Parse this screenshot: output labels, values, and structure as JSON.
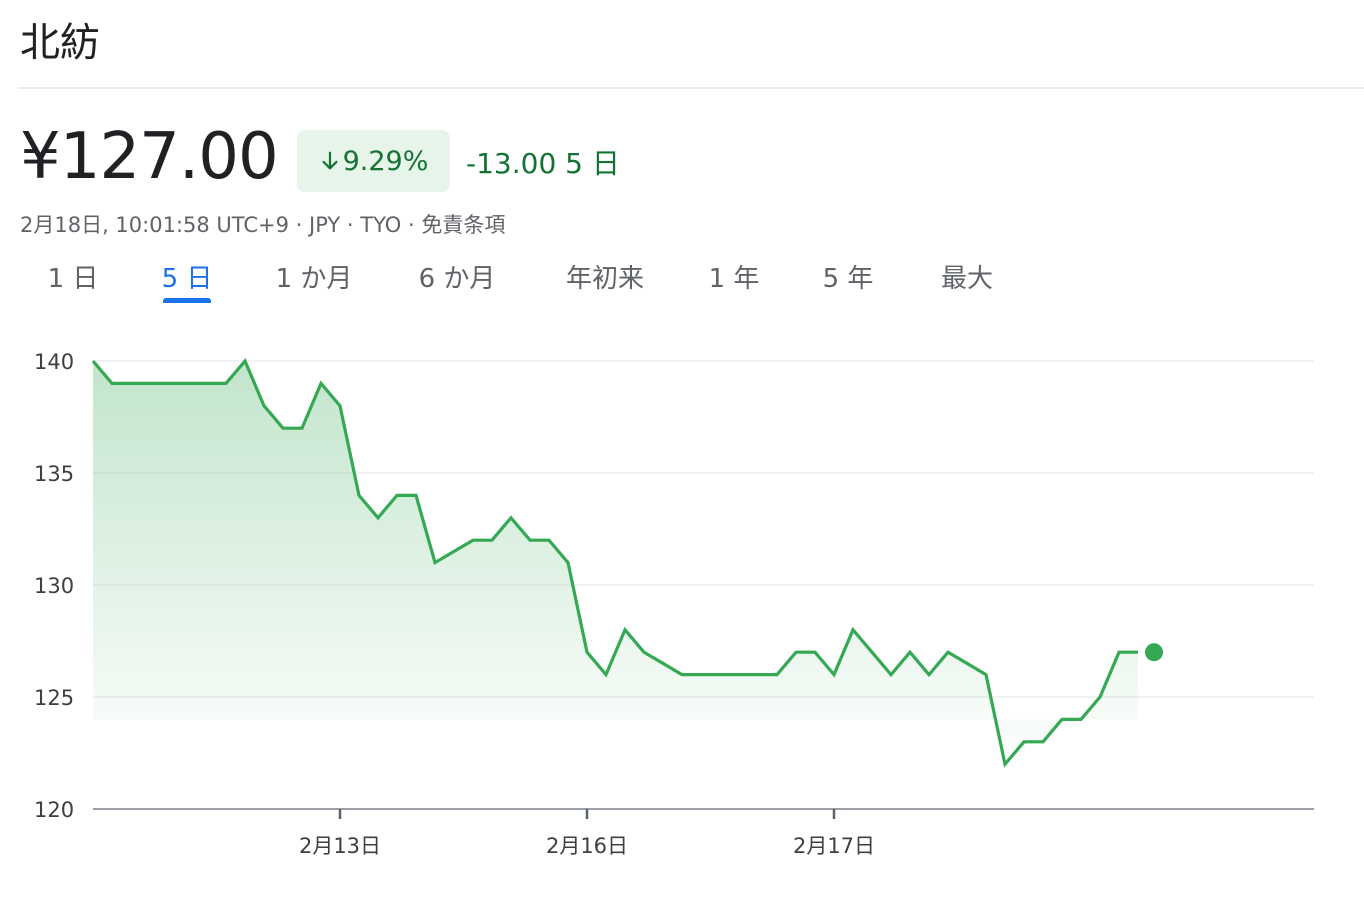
{
  "stock": {
    "name": "北紡",
    "price": "¥127.00",
    "change_percent": "9.29%",
    "change_abs": "-13.00 5 日",
    "meta": "2月18日, 10:01:58 UTC+9 · JPY · TYO · 免責条項"
  },
  "colors": {
    "line": "#34a853",
    "positive_bg": "#e6f4ea",
    "negative_text": "#137333",
    "active_tab": "#1a73e8"
  },
  "tabs": [
    "1 日",
    "5 日",
    "1 か月",
    "6 か月",
    "年初来",
    "1 年",
    "5 年",
    "最大"
  ],
  "active_tab_index": 1,
  "chart_data": {
    "type": "area",
    "ylim": [
      120,
      140
    ],
    "yticks": [
      120,
      125,
      130,
      135,
      140
    ],
    "xtick_labels": [
      "2月13日",
      "2月16日",
      "2月17日"
    ],
    "xtick_index": [
      13,
      26,
      39
    ],
    "index_max": 64,
    "values": [
      140,
      139,
      139,
      139,
      139,
      139,
      139,
      139,
      140,
      138,
      137,
      137,
      139,
      138,
      134,
      133,
      134,
      134,
      131,
      131.5,
      132,
      132,
      133,
      132,
      132,
      131,
      127,
      126,
      128,
      127,
      126.5,
      126,
      126,
      126,
      126,
      126,
      126,
      127,
      127,
      126,
      128,
      127,
      126,
      127,
      126,
      127,
      126.5,
      126,
      122,
      123,
      123,
      124,
      124,
      125,
      127,
      127
    ],
    "grid": true
  }
}
